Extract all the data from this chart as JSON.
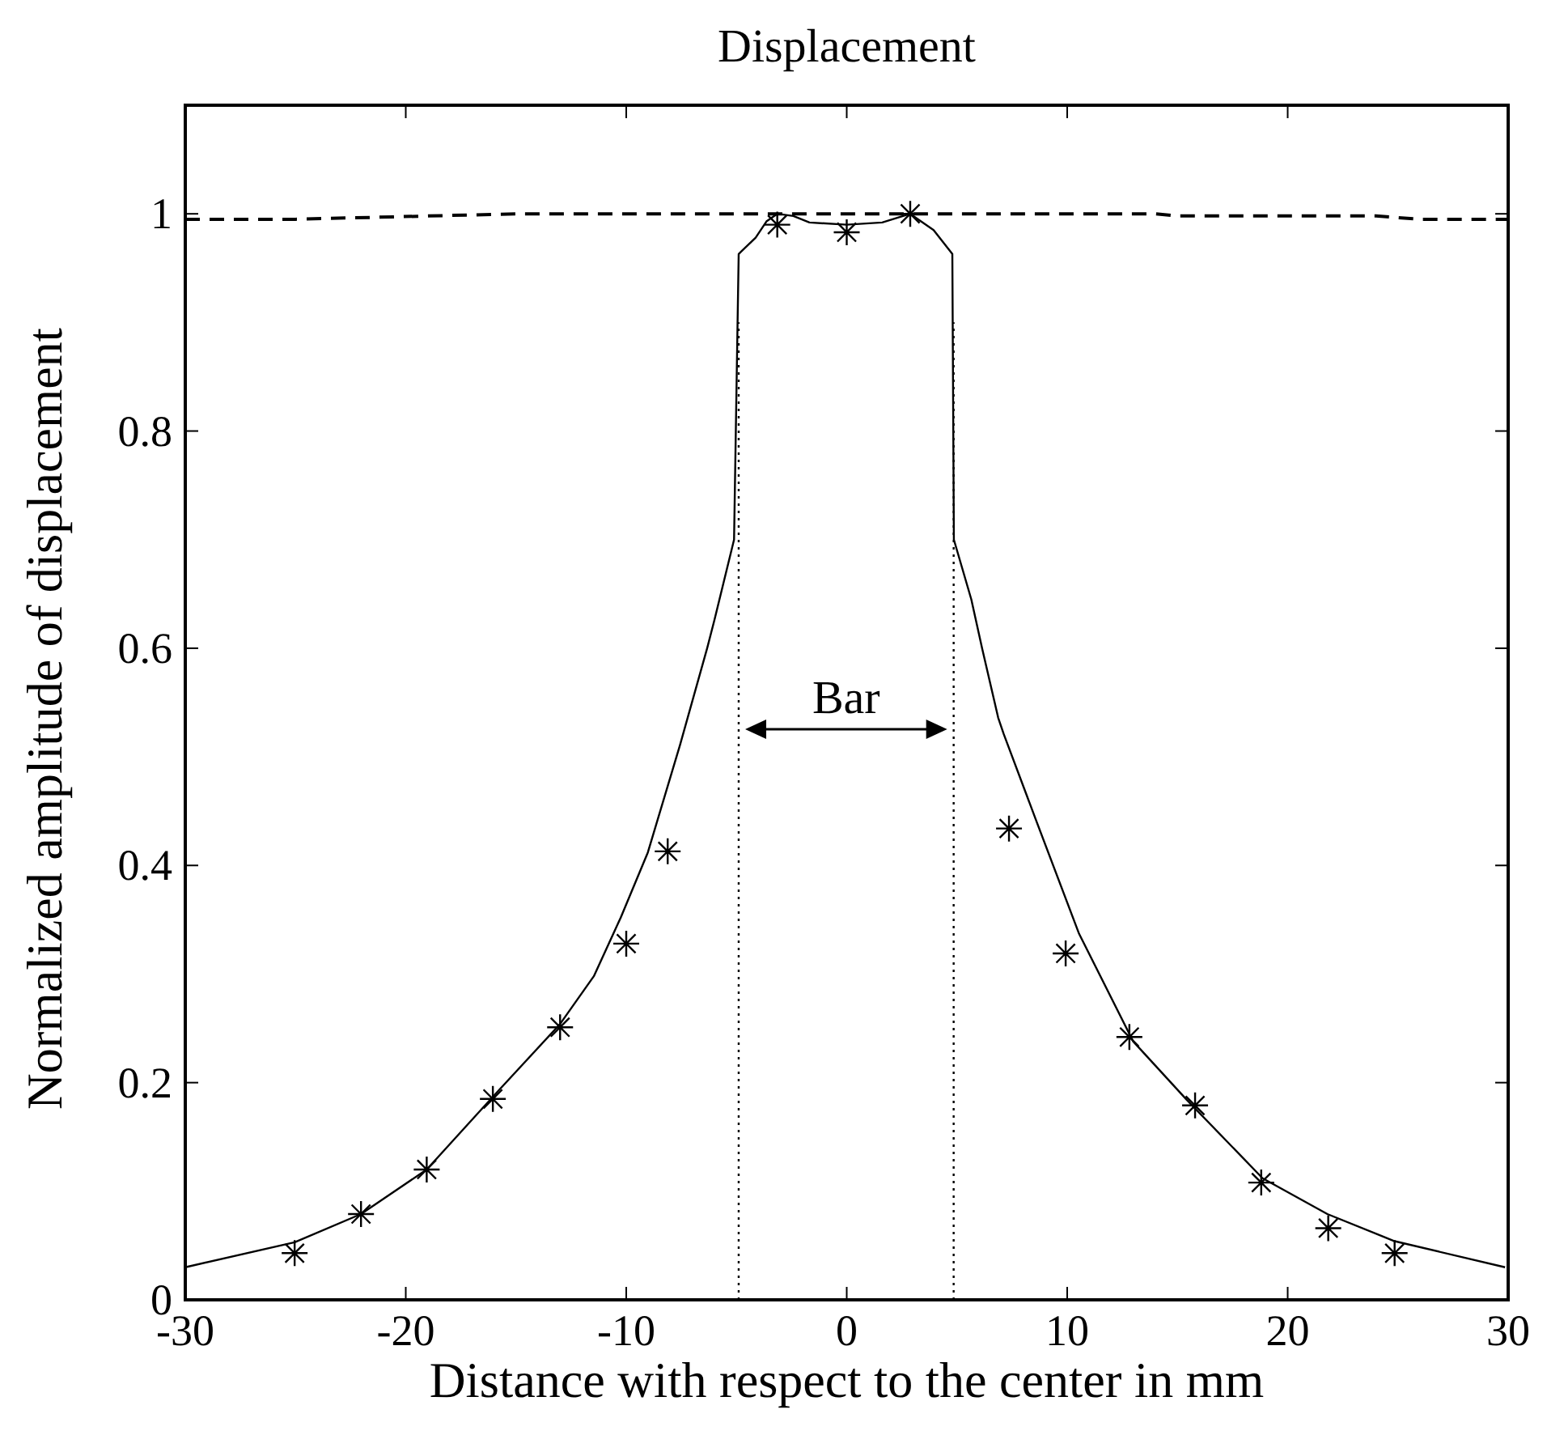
{
  "chart_data": {
    "type": "line",
    "title": "Displacement",
    "xlabel": "Distance with respect to the center in mm",
    "ylabel": "Normalized amplitude of displacement",
    "xlim": [
      -30,
      30
    ],
    "xticks": [
      -30,
      -20,
      -10,
      0,
      10,
      20,
      30
    ],
    "ylim": [
      0,
      1.1
    ],
    "yticks": [
      0,
      0.2,
      0.4,
      0.6,
      0.8,
      1
    ],
    "grid": false,
    "annotations": [
      "Bar"
    ],
    "series": [
      {
        "color": "#000000",
        "line_style": "solid",
        "marker": "none",
        "x": [
          -30,
          -25.04,
          -22.03,
          -19.05,
          -15.87,
          -13,
          -11.47,
          -10.25,
          -9.02,
          -7.56,
          -6.33,
          -6,
          -5.11,
          -4.9,
          -4.8,
          -4.13,
          -3.64,
          -3.15,
          -2.42,
          -1.69,
          0,
          1.61,
          2.88,
          3.94,
          4.79,
          4.86,
          5.65,
          6.14,
          6.87,
          7.12,
          8.58,
          10.54,
          12.99,
          15.43,
          18.86,
          21.8,
          24.85,
          29.86
        ],
        "values": [
          0.03,
          0.053,
          0.079,
          0.12,
          0.191,
          0.254,
          0.298,
          0.352,
          0.412,
          0.511,
          0.6,
          0.626,
          0.7,
          0.963,
          0.965,
          0.978,
          0.993,
          1,
          0.998,
          0.992,
          0.99,
          0.992,
          1,
          0.985,
          0.963,
          0.7,
          0.645,
          0.6,
          0.536,
          0.521,
          0.442,
          0.337,
          0.238,
          0.184,
          0.112,
          0.079,
          0.054,
          0.03
        ]
      },
      {
        "color": "#000000",
        "line_style": "dashed",
        "marker": "none",
        "x": [
          -30,
          -25,
          -15,
          14,
          15,
          24,
          26,
          30
        ],
        "values": [
          0.995,
          0.995,
          1,
          1,
          0.998,
          0.998,
          0.995,
          0.995
        ]
      },
      {
        "type": "scatter",
        "color": "#000000",
        "marker": "cross",
        "x": [
          -25.04,
          -22.03,
          -19.05,
          -16.05,
          -13,
          -10,
          -8.12,
          -3.15,
          0,
          2.88,
          7.36,
          9.93,
          12.82,
          15.8,
          18.8,
          21.84,
          24.85
        ],
        "values": [
          0.043,
          0.079,
          0.12,
          0.185,
          0.251,
          0.328,
          0.413,
          0.99,
          0.983,
          1,
          0.434,
          0.319,
          0.242,
          0.179,
          0.108,
          0.066,
          0.043
        ]
      },
      {
        "type": "line",
        "color": "#000000",
        "line_style": "dotted",
        "marker": "none",
        "x": [
          -4.9,
          -4.9
        ],
        "values": [
          0,
          0.9
        ]
      },
      {
        "type": "line",
        "color": "#000000",
        "line_style": "dotted",
        "marker": "none",
        "x": [
          4.85,
          4.85
        ],
        "values": [
          0,
          0.9
        ]
      }
    ]
  }
}
